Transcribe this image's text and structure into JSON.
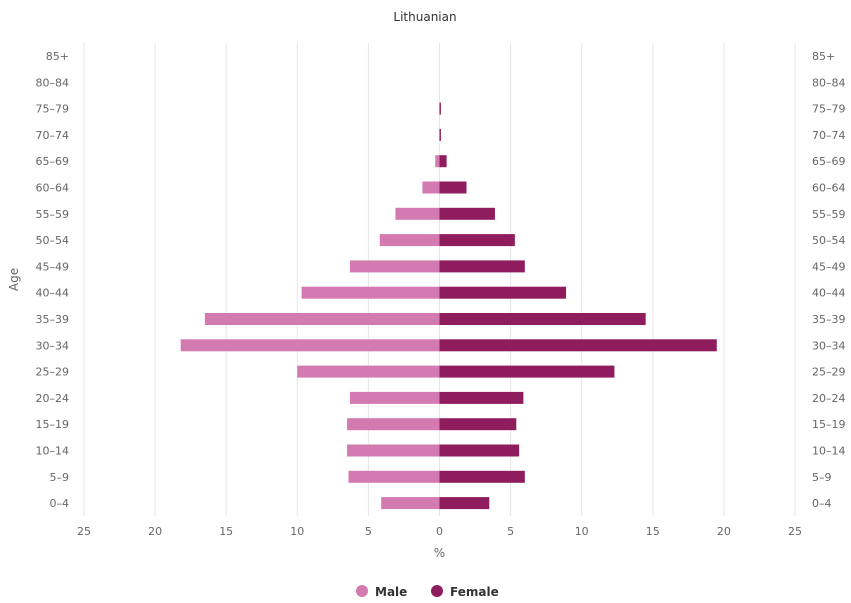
{
  "chart_data": {
    "type": "bar",
    "orientation": "horizontal-population-pyramid",
    "title": "Lithuanian",
    "xlabel": "%",
    "ylabel": "Age",
    "xlim": [
      -25,
      25
    ],
    "x_ticks": [
      -25,
      -20,
      -15,
      -10,
      -5,
      0,
      5,
      10,
      15,
      20,
      25
    ],
    "x_tick_labels": [
      "25",
      "20",
      "15",
      "10",
      "5",
      "0",
      "5",
      "10",
      "15",
      "20",
      "25"
    ],
    "grid": true,
    "legend": "bottom-center",
    "categories": [
      "85+",
      "80–84",
      "75–79",
      "70–74",
      "65–69",
      "60–64",
      "55–59",
      "50–54",
      "45–49",
      "40–44",
      "35–39",
      "30–34",
      "25–29",
      "20–24",
      "15–19",
      "10–14",
      "5–9",
      "0–4"
    ],
    "series": [
      {
        "name": "Male",
        "color": "#d37bb0",
        "values": [
          0,
          0,
          0,
          0,
          0.3,
          1.2,
          3.1,
          4.2,
          6.3,
          9.7,
          16.5,
          18.2,
          10.0,
          6.3,
          6.5,
          6.5,
          6.4,
          4.1
        ]
      },
      {
        "name": "Female",
        "color": "#8f1d5e",
        "values": [
          0,
          0,
          0.1,
          0.1,
          0.5,
          1.9,
          3.9,
          5.3,
          6.0,
          8.9,
          14.5,
          19.5,
          12.3,
          5.9,
          5.4,
          5.6,
          6.0,
          3.5
        ]
      }
    ]
  }
}
